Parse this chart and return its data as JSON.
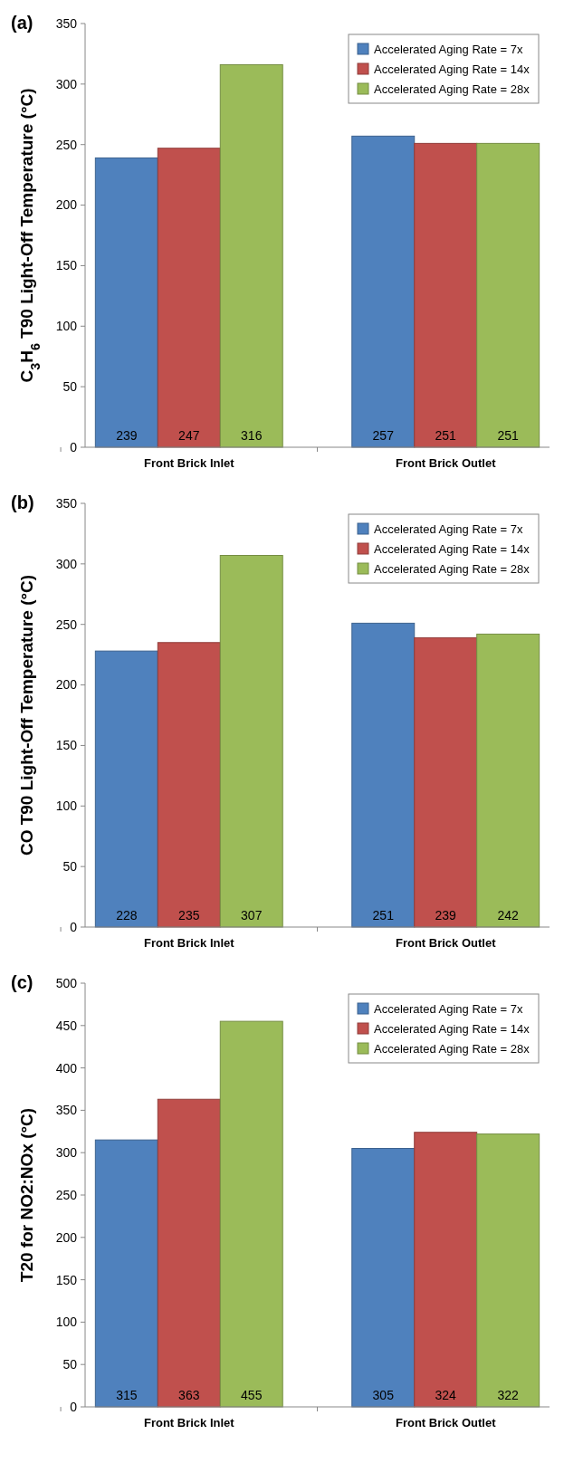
{
  "chart_data": [
    {
      "type": "bar",
      "title": "(a)",
      "ylabel": "C$_{3}$H$_{6}$ T90 Light-Off Temperature (°C)",
      "categories": [
        "Front Brick Inlet",
        "Front Brick Outlet"
      ],
      "series": [
        {
          "name": "Accelerated Aging Rate = 7x",
          "color": "#4f81bd",
          "values": [
            239,
            257
          ]
        },
        {
          "name": "Accelerated Aging Rate = 14x",
          "color": "#c0504d",
          "values": [
            247,
            251
          ]
        },
        {
          "name": "Accelerated Aging Rate = 28x",
          "color": "#9bbb59",
          "values": [
            316,
            251
          ]
        }
      ],
      "ylim": [
        0,
        350
      ],
      "yticks": [
        0,
        50,
        100,
        150,
        200,
        250,
        300,
        350
      ],
      "data_labels": true,
      "legend": "top right",
      "grid": false
    },
    {
      "type": "bar",
      "title": "(b)",
      "ylabel": "CO T90 Light-Off Temperature (°C)",
      "categories": [
        "Front Brick Inlet",
        "Front Brick Outlet"
      ],
      "series": [
        {
          "name": "Accelerated Aging Rate = 7x",
          "color": "#4f81bd",
          "values": [
            228,
            251
          ]
        },
        {
          "name": "Accelerated Aging Rate = 14x",
          "color": "#c0504d",
          "values": [
            235,
            239
          ]
        },
        {
          "name": "Accelerated Aging Rate = 28x",
          "color": "#9bbb59",
          "values": [
            307,
            242
          ]
        }
      ],
      "ylim": [
        0,
        350
      ],
      "yticks": [
        0,
        50,
        100,
        150,
        200,
        250,
        300,
        350
      ],
      "data_labels": true,
      "legend": "top right",
      "grid": false
    },
    {
      "type": "bar",
      "title": "(c)",
      "ylabel": "T20 for NO2:NOx (°C)",
      "categories": [
        "Front Brick Inlet",
        "Front Brick Outlet"
      ],
      "series": [
        {
          "name": "Accelerated Aging Rate = 7x",
          "color": "#4f81bd",
          "values": [
            315,
            305
          ]
        },
        {
          "name": "Accelerated Aging Rate = 14x",
          "color": "#c0504d",
          "values": [
            363,
            324
          ]
        },
        {
          "name": "Accelerated Aging Rate = 28x",
          "color": "#9bbb59",
          "values": [
            455,
            322
          ]
        }
      ],
      "ylim": [
        0,
        500
      ],
      "yticks": [
        0,
        50,
        100,
        150,
        200,
        250,
        300,
        350,
        400,
        450,
        500
      ],
      "data_labels": true,
      "legend": "top right",
      "grid": false
    }
  ]
}
